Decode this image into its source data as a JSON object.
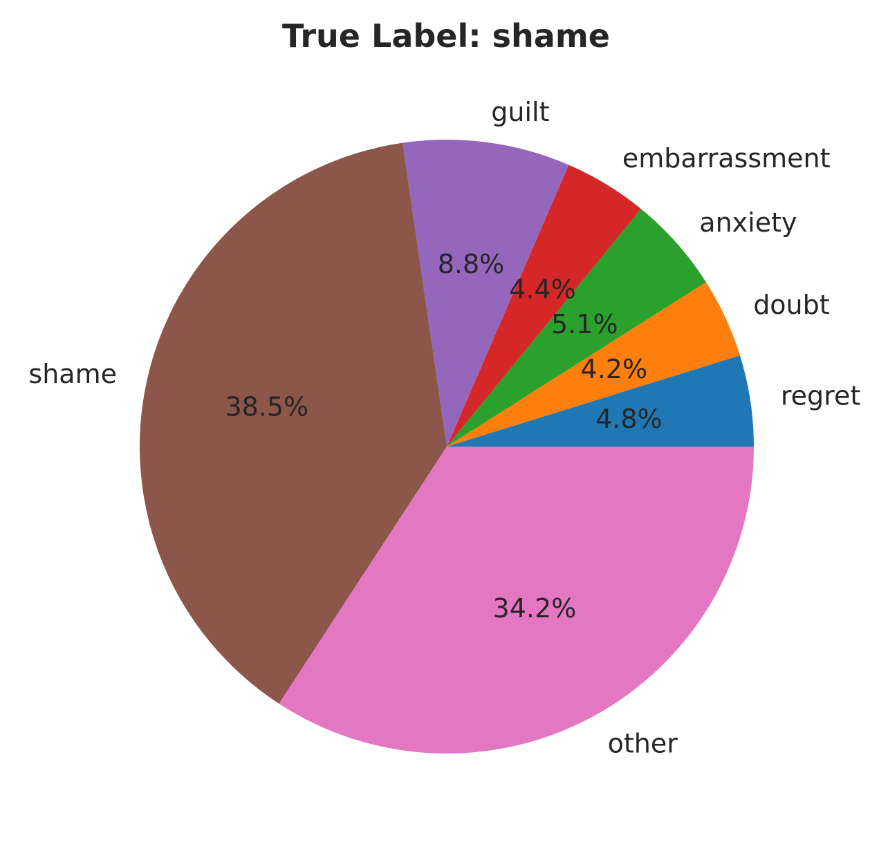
{
  "chart_data": {
    "type": "pie",
    "title": "True Label: shame",
    "slices": [
      {
        "label": "regret",
        "value": 4.8,
        "pct_label": "4.8%",
        "color": "#1f77b4"
      },
      {
        "label": "doubt",
        "value": 4.2,
        "pct_label": "4.2%",
        "color": "#ff7f0e"
      },
      {
        "label": "anxiety",
        "value": 5.1,
        "pct_label": "5.1%",
        "color": "#2ca02c"
      },
      {
        "label": "embarrassment",
        "value": 4.4,
        "pct_label": "4.4%",
        "color": "#d62728"
      },
      {
        "label": "guilt",
        "value": 8.8,
        "pct_label": "8.8%",
        "color": "#9467bd"
      },
      {
        "label": "shame",
        "value": 38.5,
        "pct_label": "38.5%",
        "color": "#8c564b"
      },
      {
        "label": "other",
        "value": 34.2,
        "pct_label": "34.2%",
        "color": "#e377c2"
      }
    ],
    "start_angle_deg": 0,
    "direction": "counterclockwise"
  }
}
